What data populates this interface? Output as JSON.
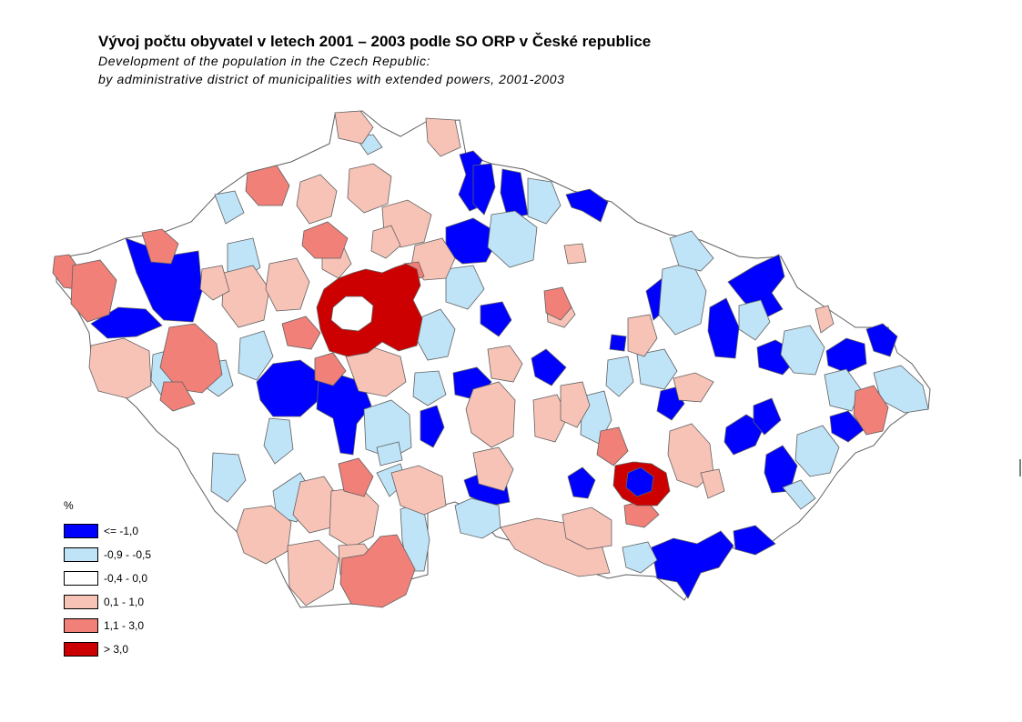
{
  "title": "Vývoj počtu obyvatel v letech 2001 – 2003 podle SO ORP v České republice",
  "subtitle_line1": "Development of the population in the Czech Republic:",
  "subtitle_line2": "by administrative district of municipalities with extended powers, 2001-2003",
  "legend": {
    "title": "%",
    "classes": [
      {
        "label": "<= -1,0",
        "color": "#0000ff"
      },
      {
        "label": "-0,9 - -0,5",
        "color": "#bfe3f7"
      },
      {
        "label": "-0,4 - 0,0",
        "color": "#ffffff"
      },
      {
        "label": "0,1 - 1,0",
        "color": "#f8c3b7"
      },
      {
        "label": "1,1 - 3,0",
        "color": "#f08078"
      },
      {
        "label": "> 3,0",
        "color": "#cc0000"
      }
    ]
  },
  "map_style": {
    "border_color": "#606060",
    "background": "#ffffff"
  }
}
